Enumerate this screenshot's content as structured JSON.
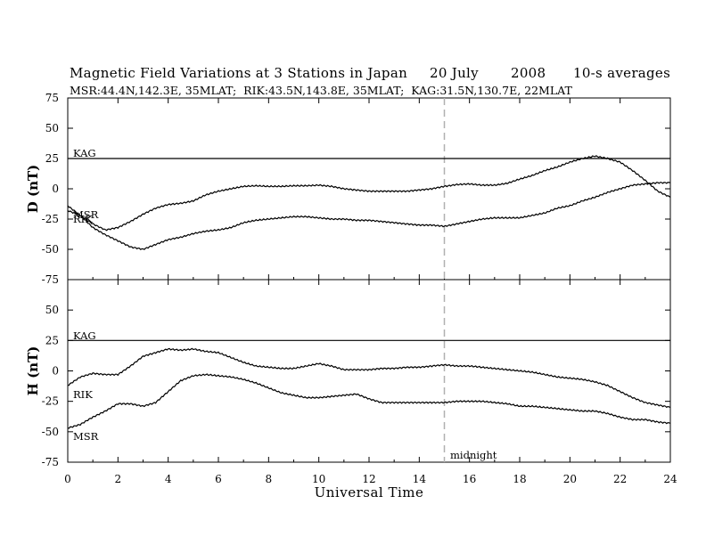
{
  "title": {
    "main": "Magnetic Field Variations at 3 Stations in Japan",
    "date": "20 July",
    "year": "2008",
    "averaging": "10-s averages"
  },
  "stations_line": "MSR:44.4N,142.3E, 35MLAT;  RIK:43.5N,143.8E, 35MLAT;  KAG:31.5N,130.7E, 22MLAT",
  "chart_data": [
    {
      "type": "line",
      "panel": "top",
      "ylabel": "D (nT)",
      "ylim": [
        -75,
        75
      ],
      "yticks": [
        75,
        50,
        25,
        0,
        -25,
        -50,
        -75
      ],
      "grid": false,
      "series": [
        {
          "name": "KAG",
          "x": [
            0,
            24
          ],
          "values": [
            25,
            25
          ]
        },
        {
          "name": "MSR",
          "x": [
            0,
            0.5,
            1,
            1.5,
            2,
            2.5,
            3,
            3.5,
            4,
            4.5,
            5,
            5.5,
            6,
            6.5,
            7,
            7.5,
            8,
            8.5,
            9,
            9.5,
            10,
            10.5,
            11,
            11.5,
            12,
            12.5,
            13,
            13.5,
            14,
            14.5,
            15,
            15.5,
            16,
            16.5,
            17,
            17.5,
            18,
            18.5,
            19,
            19.5,
            20,
            20.5,
            21,
            21.5,
            22,
            22.5,
            23,
            23.5,
            24
          ],
          "values": [
            -18,
            -22,
            -29,
            -34,
            -32,
            -27,
            -21,
            -16,
            -13,
            -12,
            -10,
            -5,
            -2,
            0,
            2,
            2.5,
            2,
            2,
            2.5,
            2.5,
            3,
            2,
            0,
            -1,
            -2,
            -2,
            -2,
            -2,
            -1,
            0,
            2,
            3.5,
            4,
            3,
            3,
            4.5,
            8,
            11,
            15,
            18,
            22,
            25,
            27,
            25,
            22,
            15,
            7,
            -2,
            -7
          ]
        },
        {
          "name": "RIK",
          "x": [
            0,
            0.5,
            1,
            1.5,
            2,
            2.5,
            3,
            3.5,
            4,
            4.5,
            5,
            5.5,
            6,
            6.5,
            7,
            7.5,
            8,
            8.5,
            9,
            9.5,
            10,
            10.5,
            11,
            11.5,
            12,
            12.5,
            13,
            13.5,
            14,
            14.5,
            15,
            15.5,
            16,
            16.5,
            17,
            17.5,
            18,
            18.5,
            19,
            19.5,
            20,
            20.5,
            21,
            21.5,
            22,
            22.5,
            23,
            23.5,
            24
          ],
          "values": [
            -14,
            -22,
            -32,
            -38,
            -43,
            -48,
            -50,
            -46,
            -42,
            -40,
            -37,
            -35,
            -34,
            -32,
            -28,
            -26,
            -25,
            -24,
            -23,
            -23,
            -24,
            -25,
            -25,
            -26,
            -26,
            -27,
            -28,
            -29,
            -30,
            -30,
            -31,
            -29,
            -27,
            -25,
            -24,
            -24,
            -24,
            -22,
            -20,
            -16,
            -14,
            -10,
            -7,
            -3,
            0,
            3,
            4,
            5,
            5
          ]
        }
      ],
      "annotations": [
        "KAG",
        "MSR",
        "RIK"
      ]
    },
    {
      "type": "line",
      "panel": "bottom",
      "ylabel": "H (nT)",
      "ylim": [
        -75,
        75
      ],
      "yticks": [
        75,
        50,
        25,
        0,
        -25,
        -50,
        -75
      ],
      "xlabel": "Universal Time",
      "xlim": [
        0,
        24
      ],
      "xticks": [
        0,
        2,
        4,
        6,
        8,
        10,
        12,
        14,
        16,
        18,
        20,
        22,
        24
      ],
      "grid": false,
      "series": [
        {
          "name": "KAG",
          "x": [
            0,
            24
          ],
          "values": [
            25,
            25
          ]
        },
        {
          "name": "RIK",
          "x": [
            0,
            0.5,
            1,
            1.5,
            2,
            2.5,
            3,
            3.5,
            4,
            4.5,
            5,
            5.5,
            6,
            6.5,
            7,
            7.5,
            8,
            8.5,
            9,
            9.5,
            10,
            10.5,
            11,
            11.5,
            12,
            12.5,
            13,
            13.5,
            14,
            14.5,
            15,
            15.5,
            16,
            16.5,
            17,
            17.5,
            18,
            18.5,
            19,
            19.5,
            20,
            20.5,
            21,
            21.5,
            22,
            22.5,
            23,
            23.5,
            24
          ],
          "values": [
            -12,
            -5,
            -2,
            -3,
            -3,
            4,
            12,
            15,
            18,
            17,
            18,
            16,
            15,
            11,
            7,
            4,
            3,
            2,
            2,
            4,
            6,
            4,
            1,
            1,
            1,
            2,
            2,
            3,
            3,
            4,
            5,
            4,
            4,
            3,
            2,
            1,
            0,
            -1,
            -3,
            -5,
            -6,
            -7,
            -9,
            -12,
            -17,
            -22,
            -26,
            -28,
            -30
          ]
        },
        {
          "name": "MSR",
          "x": [
            0,
            0.5,
            1,
            1.5,
            2,
            2.5,
            3,
            3.5,
            4,
            4.5,
            5,
            5.5,
            6,
            6.5,
            7,
            7.5,
            8,
            8.5,
            9,
            9.5,
            10,
            10.5,
            11,
            11.5,
            12,
            12.5,
            13,
            13.5,
            14,
            14.5,
            15,
            15.5,
            16,
            16.5,
            17,
            17.5,
            18,
            18.5,
            19,
            19.5,
            20,
            20.5,
            21,
            21.5,
            22,
            22.5,
            23,
            23.5,
            24
          ],
          "values": [
            -47,
            -44,
            -38,
            -33,
            -27,
            -27,
            -29,
            -26,
            -17,
            -8,
            -4,
            -3,
            -4,
            -5,
            -7,
            -10,
            -14,
            -18,
            -20,
            -22,
            -22,
            -21,
            -20,
            -19,
            -23,
            -26,
            -26,
            -26,
            -26,
            -26,
            -26,
            -25,
            -25,
            -25,
            -26,
            -27,
            -29,
            -29,
            -30,
            -31,
            -32,
            -33,
            -33,
            -35,
            -38,
            -40,
            -40,
            -42,
            -43
          ]
        }
      ],
      "annotations": [
        "KAG",
        "RIK",
        "MSR",
        "midnight"
      ]
    }
  ],
  "marker": {
    "label": "midnight",
    "x": 15
  },
  "colors": {
    "line": "#000000",
    "marker": "#b0b0b0"
  }
}
